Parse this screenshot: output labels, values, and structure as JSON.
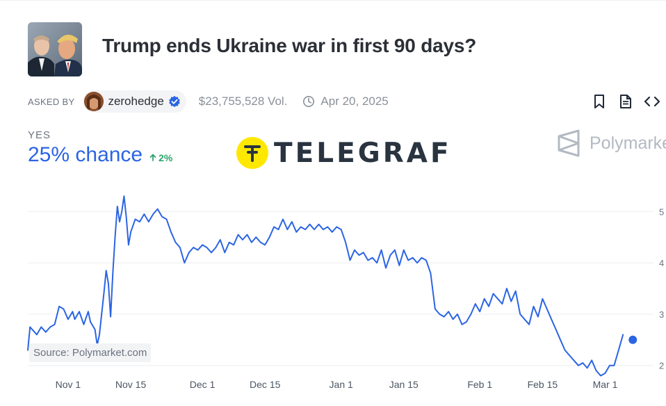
{
  "market": {
    "title": "Trump ends Ukraine war in first 90 days?",
    "asked_by_label": "ASKED BY",
    "author": "zerohedge",
    "volume": "$23,755,528 Vol.",
    "end_date": "Apr 20, 2025"
  },
  "outcome": {
    "label": "YES",
    "chance": "25% chance",
    "delta": "2%"
  },
  "watermark": {
    "text": "TELEGRAF"
  },
  "brand": {
    "name": "Polymarket"
  },
  "source": "Source: Polymarket.com",
  "colors": {
    "line": "#2b64e3",
    "accent_green": "#2ea36b",
    "watermark_yellow": "#ffe800"
  },
  "icons": [
    "verified-check-icon",
    "clock-icon",
    "bookmark-icon",
    "document-icon",
    "embed-code-icon",
    "polymarket-logo-icon"
  ],
  "chart_data": {
    "type": "line",
    "title": "",
    "xlabel": "",
    "ylabel": "",
    "x_ticks": [
      {
        "label": "Nov 1",
        "day": 0
      },
      {
        "label": "Nov 15",
        "day": 14
      },
      {
        "label": "Dec 1",
        "day": 30
      },
      {
        "label": "Dec 15",
        "day": 44
      },
      {
        "label": "Jan 1",
        "day": 61
      },
      {
        "label": "Jan 15",
        "day": 75
      },
      {
        "label": "Feb 1",
        "day": 92
      },
      {
        "label": "Feb 15",
        "day": 106
      },
      {
        "label": "Mar 1",
        "day": 120
      }
    ],
    "y_ticks": [
      {
        "label": "5",
        "value": 50
      },
      {
        "label": "4",
        "value": 40
      },
      {
        "label": "3",
        "value": 30
      },
      {
        "label": "2",
        "value": 20
      }
    ],
    "xlim": [
      -9,
      128
    ],
    "ylim": [
      14,
      56
    ],
    "series": [
      {
        "name": "Yes",
        "points": [
          [
            -9,
            23
          ],
          [
            -8.5,
            27.5
          ],
          [
            -7.5,
            26.5
          ],
          [
            -7,
            26
          ],
          [
            -6,
            27.5
          ],
          [
            -5,
            26.5
          ],
          [
            -4,
            27.5
          ],
          [
            -3,
            28
          ],
          [
            -2,
            31.5
          ],
          [
            -1,
            31
          ],
          [
            0,
            29
          ],
          [
            1,
            30.5
          ],
          [
            1.5,
            29
          ],
          [
            2.5,
            30.5
          ],
          [
            3.5,
            28
          ],
          [
            4.5,
            30.5
          ],
          [
            5,
            28.5
          ],
          [
            6,
            27
          ],
          [
            6.5,
            24
          ],
          [
            7,
            26
          ],
          [
            8,
            34
          ],
          [
            8.5,
            38.5
          ],
          [
            9,
            36
          ],
          [
            9.5,
            29.5
          ],
          [
            10,
            38
          ],
          [
            10.5,
            45
          ],
          [
            11,
            51
          ],
          [
            11.5,
            48
          ],
          [
            12,
            50
          ],
          [
            12.5,
            53
          ],
          [
            13,
            49
          ],
          [
            13.5,
            43.5
          ],
          [
            14,
            46
          ],
          [
            15,
            48.5
          ],
          [
            16,
            48
          ],
          [
            17,
            49.5
          ],
          [
            18,
            48
          ],
          [
            19,
            49.5
          ],
          [
            20,
            50.5
          ],
          [
            21,
            49
          ],
          [
            22,
            48.5
          ],
          [
            23,
            46
          ],
          [
            24,
            44
          ],
          [
            25,
            43
          ],
          [
            26,
            40
          ],
          [
            27,
            42
          ],
          [
            28,
            43
          ],
          [
            29,
            42.5
          ],
          [
            30,
            43.5
          ],
          [
            31,
            43
          ],
          [
            32,
            42
          ],
          [
            33,
            43
          ],
          [
            34,
            44.5
          ],
          [
            35,
            42
          ],
          [
            36,
            44
          ],
          [
            37,
            43.5
          ],
          [
            38,
            45.5
          ],
          [
            39,
            44.5
          ],
          [
            40,
            45.5
          ],
          [
            41,
            44
          ],
          [
            42,
            45
          ],
          [
            43,
            44
          ],
          [
            44,
            43.5
          ],
          [
            45,
            45
          ],
          [
            46,
            47
          ],
          [
            47,
            46.5
          ],
          [
            48,
            48.5
          ],
          [
            49,
            46.5
          ],
          [
            50,
            48
          ],
          [
            51,
            46
          ],
          [
            52,
            47
          ],
          [
            53,
            46.5
          ],
          [
            54,
            47.5
          ],
          [
            55,
            46.5
          ],
          [
            56,
            47.5
          ],
          [
            57,
            46.5
          ],
          [
            58,
            47
          ],
          [
            59,
            46
          ],
          [
            60,
            47
          ],
          [
            61,
            46.5
          ],
          [
            62,
            44
          ],
          [
            63,
            40.5
          ],
          [
            64,
            42.5
          ],
          [
            65,
            41.5
          ],
          [
            66,
            42
          ],
          [
            67,
            40.5
          ],
          [
            68,
            41
          ],
          [
            69,
            40
          ],
          [
            70,
            42.5
          ],
          [
            71,
            39
          ],
          [
            72,
            41.5
          ],
          [
            73,
            42.5
          ],
          [
            74,
            39.5
          ],
          [
            75,
            42.5
          ],
          [
            76,
            40.5
          ],
          [
            77,
            41
          ],
          [
            78,
            40
          ],
          [
            79,
            41
          ],
          [
            80,
            40.5
          ],
          [
            81,
            38
          ],
          [
            82,
            31
          ],
          [
            83,
            30
          ],
          [
            84,
            29.5
          ],
          [
            85,
            30.5
          ],
          [
            86,
            29
          ],
          [
            87,
            30
          ],
          [
            88,
            28
          ],
          [
            89,
            28.5
          ],
          [
            90,
            30
          ],
          [
            91,
            32
          ],
          [
            92,
            30.5
          ],
          [
            93,
            33
          ],
          [
            94,
            31.5
          ],
          [
            95,
            34
          ],
          [
            96,
            33
          ],
          [
            97,
            32
          ],
          [
            98,
            35
          ],
          [
            99,
            32.5
          ],
          [
            100,
            34.5
          ],
          [
            101,
            30
          ],
          [
            102,
            29
          ],
          [
            103,
            28
          ],
          [
            104,
            31.5
          ],
          [
            105,
            29.5
          ],
          [
            106,
            33
          ],
          [
            107,
            31
          ],
          [
            108,
            29
          ],
          [
            109,
            27
          ],
          [
            110,
            25
          ],
          [
            111,
            23
          ],
          [
            112,
            22
          ],
          [
            113,
            21
          ],
          [
            114,
            20
          ],
          [
            115,
            20.5
          ],
          [
            116,
            19.5
          ],
          [
            117,
            21
          ],
          [
            118,
            19
          ],
          [
            119,
            18
          ],
          [
            120,
            18.5
          ],
          [
            121,
            20
          ],
          [
            122,
            20
          ],
          [
            123,
            23
          ],
          [
            124,
            26
          ]
        ]
      }
    ],
    "current_value": 25,
    "grid": true,
    "legend": "none"
  }
}
